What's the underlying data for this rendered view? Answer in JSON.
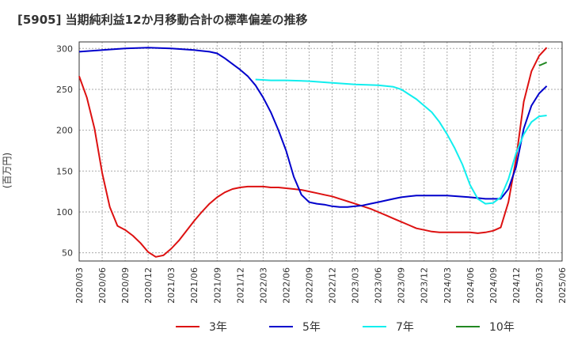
{
  "chart_data": {
    "type": "line",
    "title": "[5905]  当期純利益12か月移動合計の標準偏差の推移",
    "ylabel": "(百万円)",
    "xlabel": "",
    "ylim": [
      40,
      308
    ],
    "yticks": [
      50,
      100,
      150,
      200,
      250,
      300
    ],
    "xlim": [
      "2020-03",
      "2025-06"
    ],
    "xticks": [
      "2020/03",
      "2020/06",
      "2020/09",
      "2020/12",
      "2021/03",
      "2021/06",
      "2021/09",
      "2021/12",
      "2022/03",
      "2022/06",
      "2022/09",
      "2022/12",
      "2023/03",
      "2023/06",
      "2023/09",
      "2023/12",
      "2024/03",
      "2024/06",
      "2024/09",
      "2024/12",
      "2025/03",
      "2025/06"
    ],
    "grid": true,
    "legend_position": "bottom",
    "series": [
      {
        "name": "3年",
        "color": "#dd1111",
        "points": [
          [
            "2020-03",
            266
          ],
          [
            "2020-04",
            240
          ],
          [
            "2020-05",
            202
          ],
          [
            "2020-06",
            148
          ],
          [
            "2020-07",
            106
          ],
          [
            "2020-08",
            83
          ],
          [
            "2020-09",
            78
          ],
          [
            "2020-10",
            71
          ],
          [
            "2020-11",
            62
          ],
          [
            "2020-12",
            51
          ],
          [
            "2021-01",
            45
          ],
          [
            "2021-02",
            47
          ],
          [
            "2021-03",
            55
          ],
          [
            "2021-04",
            65
          ],
          [
            "2021-05",
            77
          ],
          [
            "2021-06",
            89
          ],
          [
            "2021-07",
            100
          ],
          [
            "2021-08",
            110
          ],
          [
            "2021-09",
            118
          ],
          [
            "2021-10",
            124
          ],
          [
            "2021-11",
            128
          ],
          [
            "2021-12",
            130
          ],
          [
            "2022-01",
            131
          ],
          [
            "2022-02",
            131
          ],
          [
            "2022-03",
            131
          ],
          [
            "2022-04",
            130
          ],
          [
            "2022-05",
            130
          ],
          [
            "2022-06",
            129
          ],
          [
            "2022-07",
            128
          ],
          [
            "2022-08",
            127
          ],
          [
            "2022-09",
            125
          ],
          [
            "2022-10",
            123
          ],
          [
            "2022-11",
            121
          ],
          [
            "2022-12",
            119
          ],
          [
            "2023-01",
            116
          ],
          [
            "2023-02",
            113
          ],
          [
            "2023-03",
            110
          ],
          [
            "2023-04",
            107
          ],
          [
            "2023-05",
            104
          ],
          [
            "2023-06",
            100
          ],
          [
            "2023-07",
            96
          ],
          [
            "2023-08",
            92
          ],
          [
            "2023-09",
            88
          ],
          [
            "2023-10",
            84
          ],
          [
            "2023-11",
            80
          ],
          [
            "2023-12",
            78
          ],
          [
            "2024-01",
            76
          ],
          [
            "2024-02",
            75
          ],
          [
            "2024-03",
            75
          ],
          [
            "2024-04",
            75
          ],
          [
            "2024-05",
            75
          ],
          [
            "2024-06",
            75
          ],
          [
            "2024-07",
            74
          ],
          [
            "2024-08",
            75
          ],
          [
            "2024-09",
            77
          ],
          [
            "2024-10",
            81
          ],
          [
            "2024-11",
            112
          ],
          [
            "2024-12",
            165
          ],
          [
            "2025-01",
            235
          ],
          [
            "2025-02",
            272
          ],
          [
            "2025-03",
            291
          ],
          [
            "2025-04",
            301
          ]
        ]
      },
      {
        "name": "5年",
        "color": "#0000cc",
        "points": [
          [
            "2020-03",
            296
          ],
          [
            "2020-06",
            298
          ],
          [
            "2020-09",
            300
          ],
          [
            "2020-12",
            301
          ],
          [
            "2021-03",
            300
          ],
          [
            "2021-06",
            298
          ],
          [
            "2021-08",
            296
          ],
          [
            "2021-09",
            294
          ],
          [
            "2021-10",
            288
          ],
          [
            "2021-11",
            281
          ],
          [
            "2021-12",
            274
          ],
          [
            "2022-01",
            266
          ],
          [
            "2022-02",
            255
          ],
          [
            "2022-03",
            240
          ],
          [
            "2022-04",
            222
          ],
          [
            "2022-05",
            200
          ],
          [
            "2022-06",
            175
          ],
          [
            "2022-07",
            143
          ],
          [
            "2022-08",
            121
          ],
          [
            "2022-09",
            112
          ],
          [
            "2022-10",
            110
          ],
          [
            "2022-11",
            109
          ],
          [
            "2022-12",
            107
          ],
          [
            "2023-01",
            106
          ],
          [
            "2023-02",
            106
          ],
          [
            "2023-03",
            107
          ],
          [
            "2023-04",
            108
          ],
          [
            "2023-05",
            110
          ],
          [
            "2023-06",
            112
          ],
          [
            "2023-07",
            114
          ],
          [
            "2023-08",
            116
          ],
          [
            "2023-09",
            118
          ],
          [
            "2023-10",
            119
          ],
          [
            "2023-11",
            120
          ],
          [
            "2023-12",
            120
          ],
          [
            "2024-03",
            120
          ],
          [
            "2024-06",
            118
          ],
          [
            "2024-08",
            116
          ],
          [
            "2024-09",
            116
          ],
          [
            "2024-10",
            116
          ],
          [
            "2024-11",
            128
          ],
          [
            "2024-12",
            155
          ],
          [
            "2025-01",
            202
          ],
          [
            "2025-02",
            230
          ],
          [
            "2025-03",
            245
          ],
          [
            "2025-04",
            254
          ]
        ]
      },
      {
        "name": "7年",
        "color": "#11eeee",
        "points": [
          [
            "2022-02",
            262
          ],
          [
            "2022-04",
            261
          ],
          [
            "2022-06",
            261
          ],
          [
            "2022-09",
            260
          ],
          [
            "2022-12",
            258
          ],
          [
            "2023-03",
            256
          ],
          [
            "2023-06",
            255
          ],
          [
            "2023-08",
            253
          ],
          [
            "2023-09",
            250
          ],
          [
            "2023-10",
            244
          ],
          [
            "2023-11",
            238
          ],
          [
            "2023-12",
            230
          ],
          [
            "2024-01",
            222
          ],
          [
            "2024-02",
            210
          ],
          [
            "2024-03",
            195
          ],
          [
            "2024-04",
            178
          ],
          [
            "2024-05",
            158
          ],
          [
            "2024-06",
            133
          ],
          [
            "2024-07",
            116
          ],
          [
            "2024-08",
            110
          ],
          [
            "2024-09",
            111
          ],
          [
            "2024-10",
            118
          ],
          [
            "2024-11",
            140
          ],
          [
            "2024-12",
            172
          ],
          [
            "2025-01",
            195
          ],
          [
            "2025-02",
            210
          ],
          [
            "2025-03",
            217
          ],
          [
            "2025-04",
            218
          ]
        ]
      },
      {
        "name": "10年",
        "color": "#228822",
        "points": [
          [
            "2025-03",
            279
          ],
          [
            "2025-04",
            283
          ]
        ]
      }
    ]
  }
}
